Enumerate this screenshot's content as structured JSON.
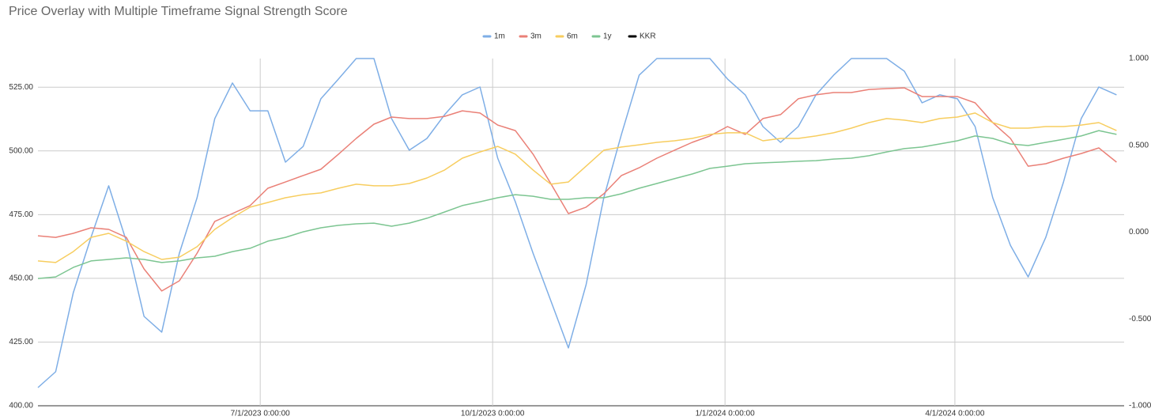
{
  "chart_data": {
    "type": "line",
    "title": "Price Overlay with Multiple Timeframe Signal Strength Score",
    "x": [
      "4/4/2023",
      "4/11/2023",
      "4/18/2023",
      "4/25/2023",
      "5/2/2023",
      "5/9/2023",
      "5/16/2023",
      "5/23/2023",
      "5/30/2023",
      "6/6/2023",
      "6/13/2023",
      "6/20/2023",
      "6/27/2023",
      "7/4/2023",
      "7/11/2023",
      "7/18/2023",
      "7/25/2023",
      "8/1/2023",
      "8/8/2023",
      "8/15/2023",
      "8/22/2023",
      "8/29/2023",
      "9/5/2023",
      "9/12/2023",
      "9/19/2023",
      "9/26/2023",
      "10/3/2023",
      "10/10/2023",
      "10/17/2023",
      "10/24/2023",
      "10/31/2023",
      "11/7/2023",
      "11/14/2023",
      "11/21/2023",
      "11/28/2023",
      "12/5/2023",
      "12/12/2023",
      "12/19/2023",
      "12/26/2023",
      "1/2/2024",
      "1/9/2024",
      "1/16/2024",
      "1/23/2024",
      "1/30/2024",
      "2/6/2024",
      "2/13/2024",
      "2/20/2024",
      "2/27/2024",
      "3/5/2024",
      "3/12/2024",
      "3/19/2024",
      "3/26/2024",
      "4/2/2024",
      "4/9/2024",
      "4/16/2024",
      "4/23/2024",
      "4/30/2024",
      "5/7/2024",
      "5/14/2024",
      "5/21/2024",
      "5/28/2024",
      "6/4/2024"
    ],
    "xlim": [
      "4/4/2023",
      "6/7/2024"
    ],
    "xticks": [
      {
        "value": "7/1/2023",
        "label": "7/1/2023 0:00:00"
      },
      {
        "value": "10/1/2023",
        "label": "10/1/2023 0:00:00"
      },
      {
        "value": "1/1/2024",
        "label": "1/1/2024 0:00:00"
      },
      {
        "value": "4/1/2024",
        "label": "4/1/2024 0:00:00"
      }
    ],
    "ylim": [
      400,
      536.25
    ],
    "yticks": [
      {
        "value": 400,
        "label": "400.00"
      },
      {
        "value": 425,
        "label": "425.00"
      },
      {
        "value": 450,
        "label": "450.00"
      },
      {
        "value": 475,
        "label": "475.00"
      },
      {
        "value": 500,
        "label": "500.00"
      },
      {
        "value": 525,
        "label": "525.00"
      }
    ],
    "y2lim": [
      -1,
      1
    ],
    "y2ticks": [
      {
        "value": -1,
        "label": "-1.000"
      },
      {
        "value": -0.5,
        "label": "-0.500"
      },
      {
        "value": 0,
        "label": "0.000"
      },
      {
        "value": 0.5,
        "label": "0.500"
      },
      {
        "value": 1,
        "label": "1.000"
      }
    ],
    "grid": true,
    "legend": "top",
    "series": [
      {
        "name": "1m",
        "color": "#7eaee6",
        "axis": "y2",
        "values": [
          -0.895,
          -0.804,
          -0.349,
          -0.03,
          0.267,
          -0.052,
          -0.485,
          -0.576,
          -0.121,
          0.198,
          0.654,
          0.859,
          0.699,
          0.699,
          0.403,
          0.494,
          0.768,
          0.882,
          1,
          1,
          0.654,
          0.472,
          0.54,
          0.677,
          0.791,
          0.836,
          0.426,
          0.175,
          -0.121,
          -0.394,
          -0.667,
          -0.303,
          0.198,
          0.563,
          0.904,
          1,
          1,
          1,
          1,
          0.882,
          0.791,
          0.608,
          0.517,
          0.608,
          0.791,
          0.904,
          1,
          1,
          1,
          0.927,
          0.745,
          0.791,
          0.768,
          0.608,
          0.198,
          -0.076,
          -0.258,
          -0.03,
          0.289,
          0.654,
          0.836,
          0.791
        ]
      },
      {
        "name": "3m",
        "color": "#ea8077",
        "axis": "y2",
        "values": [
          -0.021,
          -0.03,
          -0.007,
          0.025,
          0.016,
          -0.03,
          -0.212,
          -0.339,
          -0.28,
          -0.121,
          0.062,
          0.107,
          0.153,
          0.253,
          0.289,
          0.326,
          0.362,
          0.449,
          0.54,
          0.622,
          0.663,
          0.654,
          0.654,
          0.667,
          0.699,
          0.686,
          0.617,
          0.585,
          0.449,
          0.28,
          0.107,
          0.144,
          0.221,
          0.326,
          0.371,
          0.426,
          0.472,
          0.517,
          0.554,
          0.608,
          0.563,
          0.654,
          0.677,
          0.768,
          0.791,
          0.804,
          0.804,
          0.822,
          0.827,
          0.831,
          0.781,
          0.781,
          0.781,
          0.745,
          0.631,
          0.54,
          0.38,
          0.394,
          0.426,
          0.453,
          0.485,
          0.403
        ]
      },
      {
        "name": "6m",
        "color": "#f7cd5f",
        "axis": "y2",
        "values": [
          -0.166,
          -0.175,
          -0.112,
          -0.03,
          -0.007,
          -0.052,
          -0.112,
          -0.157,
          -0.144,
          -0.084,
          0.016,
          0.084,
          0.144,
          0.171,
          0.198,
          0.216,
          0.226,
          0.253,
          0.276,
          0.267,
          0.267,
          0.28,
          0.312,
          0.358,
          0.426,
          0.462,
          0.494,
          0.449,
          0.358,
          0.276,
          0.289,
          0.38,
          0.472,
          0.49,
          0.503,
          0.517,
          0.526,
          0.54,
          0.563,
          0.572,
          0.572,
          0.526,
          0.54,
          0.54,
          0.554,
          0.572,
          0.599,
          0.631,
          0.654,
          0.645,
          0.631,
          0.654,
          0.663,
          0.686,
          0.631,
          0.599,
          0.599,
          0.608,
          0.608,
          0.617,
          0.631,
          0.585
        ]
      },
      {
        "name": "1y",
        "color": "#7cc591",
        "axis": "y2",
        "values": [
          -0.267,
          -0.258,
          -0.203,
          -0.166,
          -0.157,
          -0.148,
          -0.157,
          -0.175,
          -0.166,
          -0.148,
          -0.139,
          -0.112,
          -0.093,
          -0.052,
          -0.03,
          0.002,
          0.025,
          0.039,
          0.048,
          0.052,
          0.034,
          0.052,
          0.08,
          0.116,
          0.153,
          0.175,
          0.198,
          0.216,
          0.207,
          0.189,
          0.189,
          0.198,
          0.198,
          0.221,
          0.253,
          0.28,
          0.308,
          0.335,
          0.367,
          0.38,
          0.394,
          0.399,
          0.403,
          0.408,
          0.412,
          0.421,
          0.426,
          0.44,
          0.462,
          0.481,
          0.49,
          0.508,
          0.526,
          0.554,
          0.54,
          0.508,
          0.499,
          0.517,
          0.535,
          0.554,
          0.585,
          0.563
        ]
      },
      {
        "name": "KKR",
        "color": "#000000"
      }
    ]
  }
}
